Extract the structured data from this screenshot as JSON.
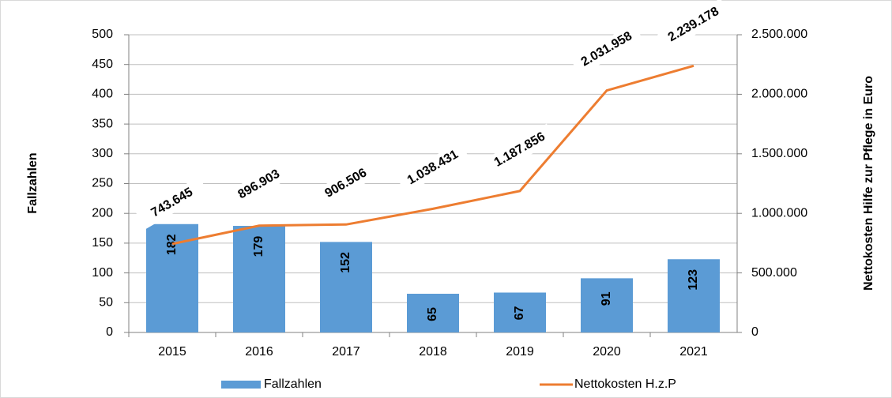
{
  "chart_data": {
    "type": "combo",
    "categories": [
      "2015",
      "2016",
      "2017",
      "2018",
      "2019",
      "2020",
      "2021"
    ],
    "series": [
      {
        "name": "Fallzahlen",
        "type": "bar",
        "color": "#5b9bd5",
        "values": [
          182,
          179,
          152,
          65,
          67,
          91,
          123
        ]
      },
      {
        "name": "Nettokosten H.z.P",
        "type": "line",
        "axis": "y2",
        "color": "#ed7d31",
        "values": [
          743645,
          896903,
          906506,
          1038431,
          1187856,
          2031958,
          2239178
        ],
        "value_labels": [
          "743.645",
          "896.903",
          "906.506",
          "1.038.431",
          "1.187.856",
          "2.031.958",
          "2.239.178"
        ]
      }
    ],
    "y_label": "Fallzahlen",
    "y2_label": "Nettokosten Hilfe zur Pflege in Euro",
    "ylim": [
      0,
      500
    ],
    "yticks": [
      0,
      50,
      100,
      150,
      200,
      250,
      300,
      350,
      400,
      450,
      500
    ],
    "y2lim": [
      0,
      2500000
    ],
    "y2ticks": [
      0,
      {
        "value": 500000,
        "label": "500.000"
      },
      {
        "value": 1000000,
        "label": "1.000.000"
      },
      {
        "value": 1500000,
        "label": "1.500.000"
      },
      {
        "value": 2000000,
        "label": "2.000.000"
      },
      {
        "value": 2500000,
        "label": "2.500.000"
      }
    ],
    "grid": true,
    "legend": "bottom"
  }
}
